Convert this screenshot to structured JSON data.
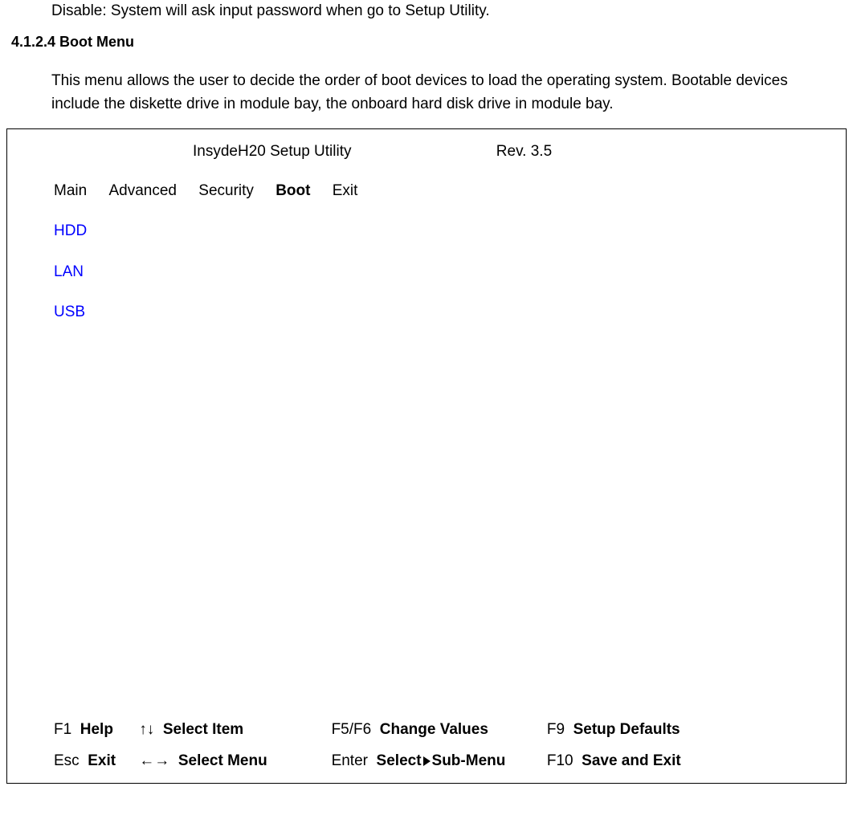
{
  "intro": {
    "disable_text": "Disable: System will ask input password when go to Setup Utility."
  },
  "section": {
    "heading": "4.1.2.4 Boot Menu",
    "description": "This menu allows the user to decide the order of boot devices to load the operating system. Bootable devices include the diskette drive in module bay, the onboard hard disk drive in module bay."
  },
  "bios": {
    "title": "InsydeH20 Setup Utility",
    "revision": "Rev. 3.5",
    "tabs": [
      {
        "label": "Main",
        "active": false
      },
      {
        "label": "Advanced",
        "active": false
      },
      {
        "label": "Security",
        "active": false
      },
      {
        "label": "Boot",
        "active": true
      },
      {
        "label": "Exit",
        "active": false
      }
    ],
    "boot_items": [
      "HDD",
      "LAN",
      "USB"
    ],
    "boot_item_color": "#0000ff",
    "footer": {
      "row1": [
        {
          "key": "F1",
          "action": "Help"
        },
        {
          "key": "↑↓",
          "action": "Select Item"
        },
        {
          "key": "F5/F6",
          "action": "Change Values"
        },
        {
          "key": "F9",
          "action": "Setup Defaults"
        }
      ],
      "row2": [
        {
          "key": "Esc",
          "action": "Exit"
        },
        {
          "key": "←→",
          "action": "Select Menu"
        },
        {
          "key": "Enter",
          "action_pre": "Select ",
          "triangle": true,
          "action_post": "Sub-Menu"
        },
        {
          "key": "F10",
          "action": "Save and Exit"
        }
      ]
    }
  },
  "colors": {
    "text": "#000000",
    "link": "#0000ff",
    "background": "#ffffff",
    "border": "#000000"
  }
}
